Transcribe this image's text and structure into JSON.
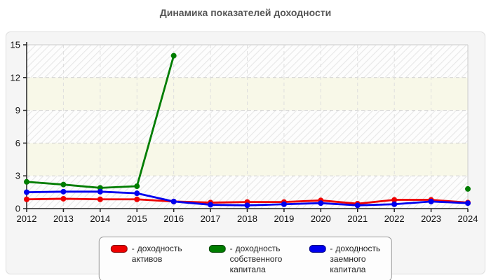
{
  "page": {
    "title": "Динамика показателей доходности"
  },
  "chart_data": {
    "type": "line",
    "title": "Динамика показателей доходности",
    "x": [
      2012,
      2013,
      2014,
      2015,
      2016,
      2017,
      2018,
      2019,
      2020,
      2021,
      2022,
      2023,
      2024
    ],
    "series": [
      {
        "name": "доходность активов",
        "color": "#ee0000",
        "values": [
          0.85,
          0.9,
          0.85,
          0.85,
          0.65,
          0.55,
          0.6,
          0.6,
          0.75,
          0.45,
          0.8,
          0.8,
          0.55
        ]
      },
      {
        "name": "доходность собственного капитала",
        "color": "#007d00",
        "values": [
          2.45,
          2.2,
          1.9,
          2.05,
          14.0,
          null,
          null,
          null,
          null,
          null,
          null,
          null,
          1.8
        ]
      },
      {
        "name": "доходность заемного капитала",
        "color": "#0000ee",
        "values": [
          1.5,
          1.55,
          1.55,
          1.4,
          0.65,
          0.35,
          0.3,
          0.4,
          0.5,
          0.3,
          0.4,
          0.65,
          0.5
        ]
      }
    ],
    "ylim": [
      0,
      15
    ],
    "yticks": [
      0,
      3,
      6,
      9,
      12,
      15
    ],
    "xlabel": "",
    "ylabel": "",
    "grid": "dashed",
    "legend_position": "bottom",
    "legend_prefix": "-"
  }
}
